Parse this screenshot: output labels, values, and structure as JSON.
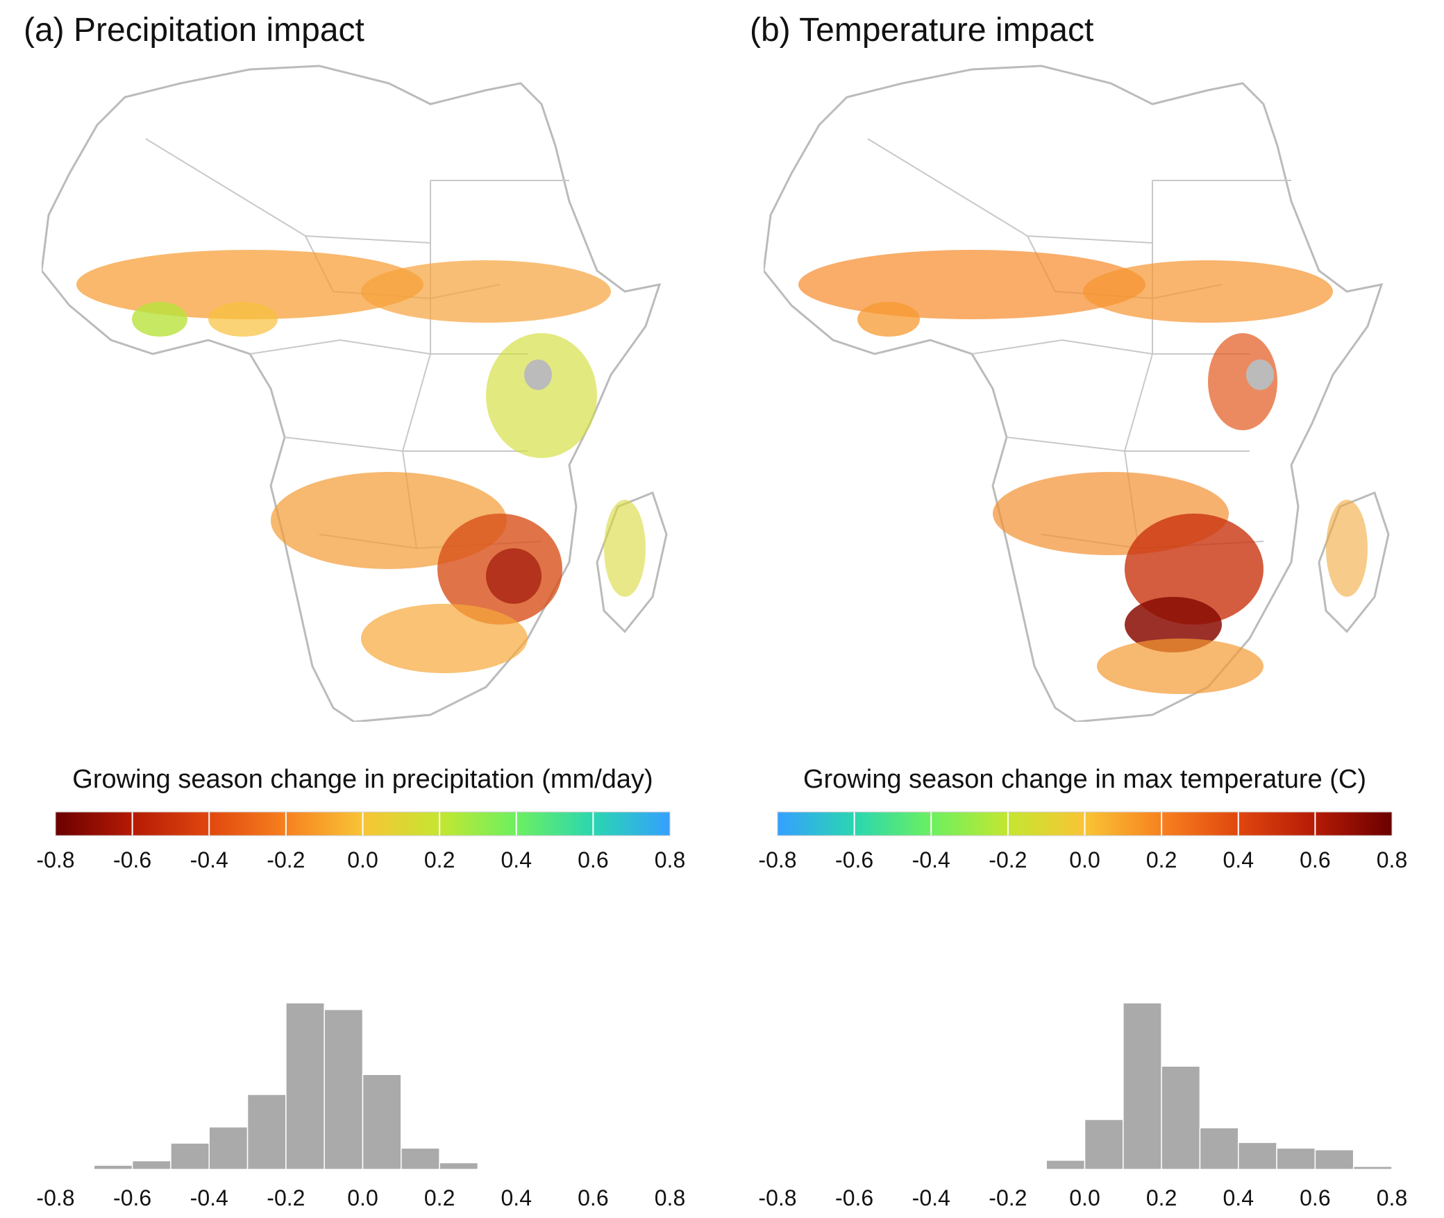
{
  "panels": [
    {
      "title": "(a) Precipitation impact",
      "colorbar_title": "Growing season change in precipitation (mm/day)"
    },
    {
      "title": "(b) Temperature impact",
      "colorbar_title": "Growing season change in max temperature (C)"
    }
  ],
  "chart_data": [
    {
      "type": "map",
      "title": "(a) Precipitation impact",
      "region": "Africa",
      "colorbar": {
        "label": "Growing season change in precipitation (mm/day)",
        "range": [
          -0.8,
          0.8
        ],
        "ticks": [
          "-0.8",
          "-0.6",
          "-0.4",
          "-0.2",
          "0.0",
          "0.2",
          "0.4",
          "0.6",
          "0.8"
        ],
        "colors": [
          "#6b0000",
          "#b51a05",
          "#e0470e",
          "#f7811f",
          "#f9c436",
          "#c4e630",
          "#6cf060",
          "#2ad6b0",
          "#35a0ff"
        ]
      }
    },
    {
      "type": "map",
      "title": "(b) Temperature impact",
      "region": "Africa",
      "colorbar": {
        "label": "Growing season change in max temperature (C)",
        "range": [
          -0.8,
          0.8
        ],
        "ticks": [
          "-0.8",
          "-0.6",
          "-0.4",
          "-0.2",
          "0.0",
          "0.2",
          "0.4",
          "0.6",
          "0.8"
        ],
        "colors": [
          "#35a0ff",
          "#2ad6b0",
          "#6cf060",
          "#c4e630",
          "#f9c436",
          "#f7811f",
          "#e0470e",
          "#b51a05",
          "#6b0000"
        ]
      }
    },
    {
      "type": "bar",
      "description": "histogram",
      "bin_edges": [
        -0.7,
        -0.6,
        -0.5,
        -0.4,
        -0.3,
        -0.2,
        -0.1,
        0.0,
        0.1,
        0.2,
        0.3,
        0.4
      ],
      "values": [
        0.025,
        0.052,
        0.158,
        0.255,
        0.45,
        1.0,
        0.96,
        0.57,
        0.128,
        0.04,
        0.006
      ],
      "xlim": [
        -0.8,
        0.8
      ],
      "xticks": [
        "-0.8",
        "-0.6",
        "-0.4",
        "-0.2",
        "0.0",
        "0.2",
        "0.4",
        "0.6",
        "0.8"
      ],
      "color": "#aaaaaa"
    },
    {
      "type": "bar",
      "description": "histogram",
      "bin_edges": [
        -0.1,
        0.0,
        0.1,
        0.2,
        0.3,
        0.4,
        0.5,
        0.6,
        0.7,
        0.8
      ],
      "values": [
        0.055,
        0.3,
        1.0,
        0.62,
        0.25,
        0.162,
        0.128,
        0.118,
        0.018
      ],
      "extra_bin": {
        "edges": [
          -0.2,
          -0.1
        ],
        "value": 0.006
      },
      "xlim": [
        -0.8,
        0.8
      ],
      "xticks": [
        "-0.8",
        "-0.6",
        "-0.4",
        "-0.2",
        "0.0",
        "0.2",
        "0.4",
        "0.6",
        "0.8"
      ],
      "color": "#aaaaaa"
    }
  ]
}
